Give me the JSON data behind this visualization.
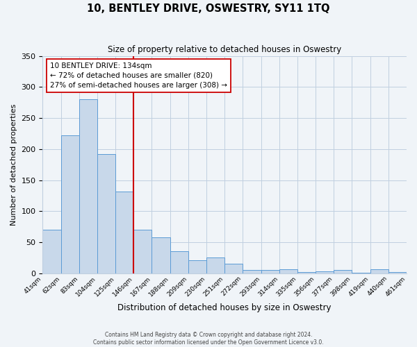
{
  "title": "10, BENTLEY DRIVE, OSWESTRY, SY11 1TQ",
  "subtitle": "Size of property relative to detached houses in Oswestry",
  "xlabel": "Distribution of detached houses by size in Oswestry",
  "ylabel": "Number of detached properties",
  "bin_labels": [
    "41sqm",
    "62sqm",
    "83sqm",
    "104sqm",
    "125sqm",
    "146sqm",
    "167sqm",
    "188sqm",
    "209sqm",
    "230sqm",
    "251sqm",
    "272sqm",
    "293sqm",
    "314sqm",
    "335sqm",
    "356sqm",
    "377sqm",
    "398sqm",
    "419sqm",
    "440sqm",
    "461sqm"
  ],
  "bar_heights": [
    70,
    222,
    280,
    192,
    132,
    70,
    58,
    35,
    21,
    25,
    15,
    5,
    5,
    7,
    2,
    3,
    5,
    1,
    6,
    2
  ],
  "bar_color": "#c8d8ea",
  "bar_edge_color": "#5b9bd5",
  "ylim": [
    0,
    350
  ],
  "yticks": [
    0,
    50,
    100,
    150,
    200,
    250,
    300,
    350
  ],
  "property_line_color": "#cc0000",
  "property_line_x": 4.5,
  "annotation_line1": "10 BENTLEY DRIVE: 134sqm",
  "annotation_line2": "← 72% of detached houses are smaller (820)",
  "annotation_line3": "27% of semi-detached houses are larger (308) →",
  "annotation_box_color": "#ffffff",
  "annotation_box_edge": "#cc0000",
  "footer_text": "Contains HM Land Registry data © Crown copyright and database right 2024.\nContains public sector information licensed under the Open Government Licence v3.0.",
  "background_color": "#f0f4f8",
  "grid_color": "#c0cfe0"
}
